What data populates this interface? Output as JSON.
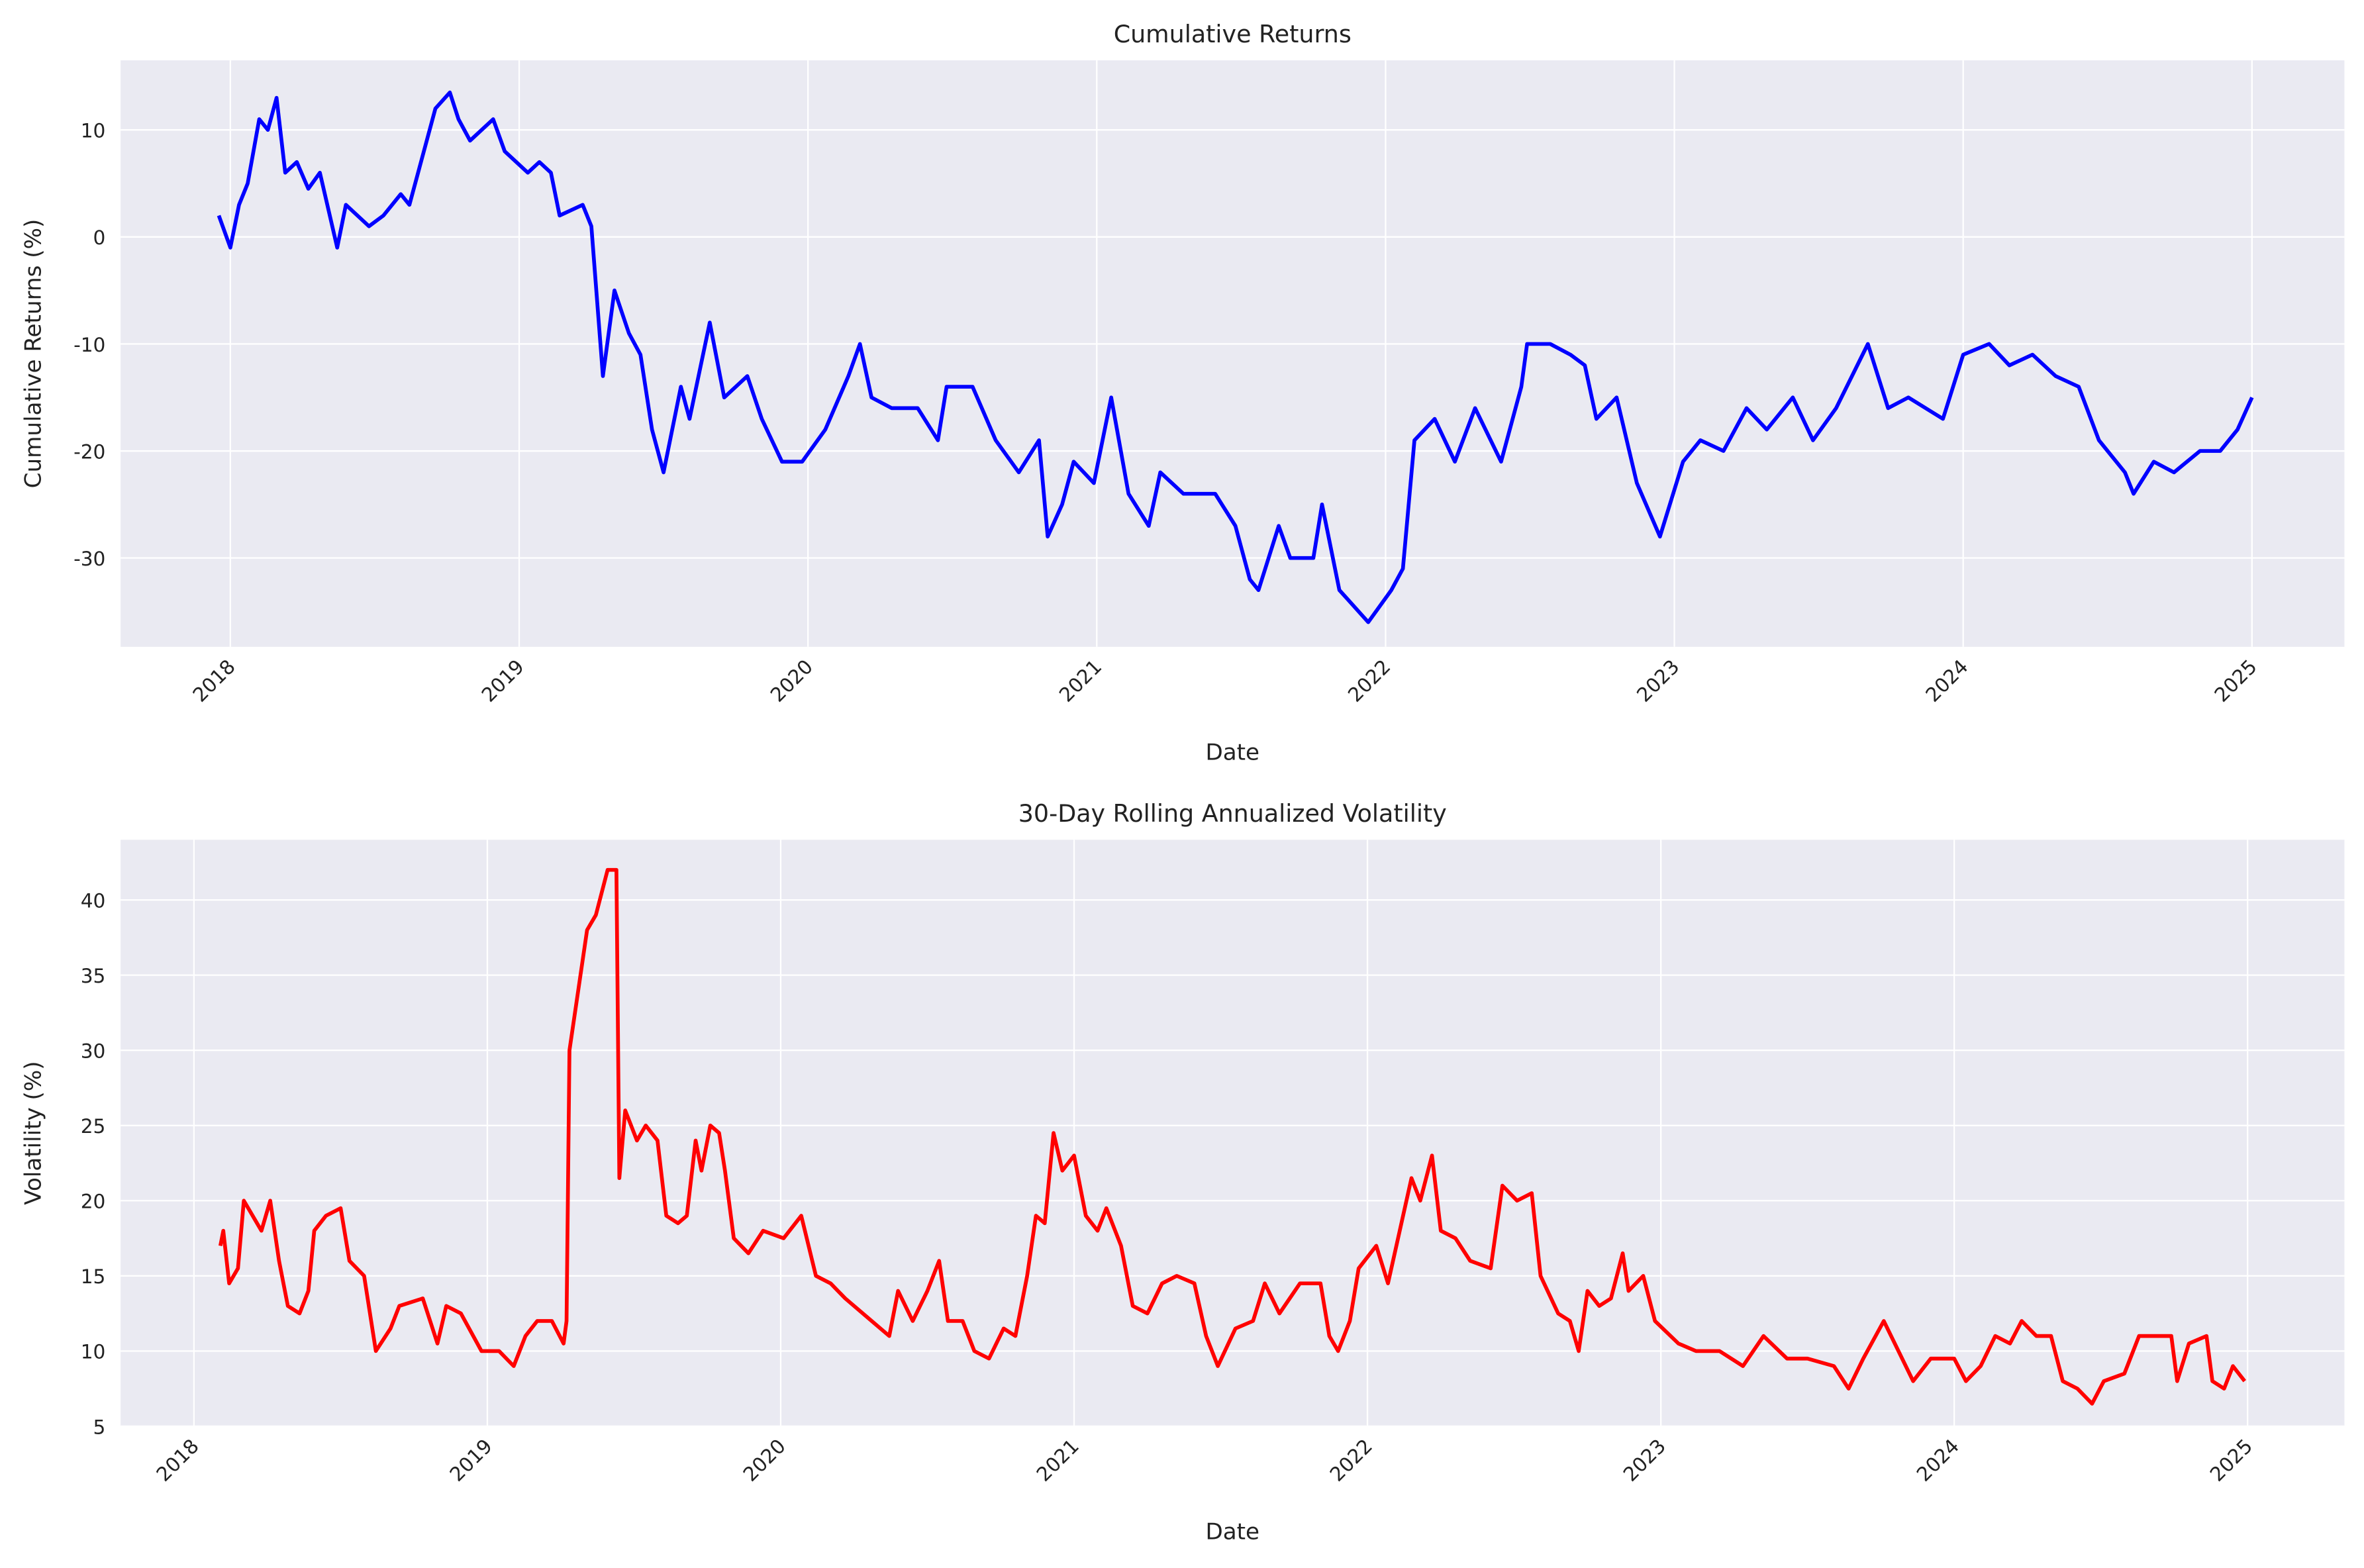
{
  "chart_data": [
    {
      "type": "line",
      "title": "Cumulative Returns",
      "x_label": "Date",
      "y_label": "Cumulative Returns (%)",
      "color": "#0000ff",
      "grid": true,
      "xlim": [
        2017.62,
        2025.32
      ],
      "xticks": [
        2018,
        2019,
        2020,
        2021,
        2022,
        2023,
        2024,
        2025
      ],
      "ylim": [
        -38.3,
        16.5
      ],
      "yticks": [
        -30,
        -20,
        -10,
        0,
        10
      ],
      "x": [
        2017.96,
        2018.0,
        2018.03,
        2018.06,
        2018.1,
        2018.13,
        2018.16,
        2018.19,
        2018.23,
        2018.27,
        2018.31,
        2018.37,
        2018.4,
        2018.48,
        2018.53,
        2018.59,
        2018.62,
        2018.66,
        2018.71,
        2018.76,
        2018.79,
        2018.83,
        2018.91,
        2018.95,
        2019.03,
        2019.07,
        2019.11,
        2019.14,
        2019.22,
        2019.25,
        2019.29,
        2019.33,
        2019.38,
        2019.42,
        2019.46,
        2019.5,
        2019.56,
        2019.59,
        2019.66,
        2019.71,
        2019.79,
        2019.84,
        2019.91,
        2019.98,
        2020.06,
        2020.14,
        2020.18,
        2020.22,
        2020.29,
        2020.38,
        2020.45,
        2020.48,
        2020.57,
        2020.65,
        2020.73,
        2020.8,
        2020.83,
        2020.88,
        2020.92,
        2020.99,
        2021.05,
        2021.11,
        2021.18,
        2021.22,
        2021.3,
        2021.41,
        2021.48,
        2021.53,
        2021.56,
        2021.63,
        2021.67,
        2021.75,
        2021.78,
        2021.84,
        2021.94,
        2022.02,
        2022.06,
        2022.1,
        2022.17,
        2022.24,
        2022.31,
        2022.4,
        2022.47,
        2022.49,
        2022.57,
        2022.64,
        2022.69,
        2022.73,
        2022.8,
        2022.87,
        2022.95,
        2023.03,
        2023.09,
        2023.17,
        2023.25,
        2023.32,
        2023.41,
        2023.48,
        2023.56,
        2023.67,
        2023.74,
        2023.81,
        2023.93,
        2024.0,
        2024.09,
        2024.16,
        2024.24,
        2024.32,
        2024.4,
        2024.47,
        2024.56,
        2024.59,
        2024.66,
        2024.73,
        2024.82,
        2024.89,
        2024.95,
        2025.0
      ],
      "values": [
        2,
        -1,
        3,
        5,
        11,
        10,
        13,
        6,
        7,
        4.5,
        6,
        -1,
        3,
        1,
        2,
        4,
        3,
        7,
        12,
        13.5,
        11,
        9,
        11,
        8,
        6,
        7,
        6,
        2,
        3,
        1,
        -13,
        -5,
        -9,
        -11,
        -18,
        -22,
        -14,
        -17,
        -8,
        -15,
        -13,
        -17,
        -21,
        -21,
        -18,
        -13,
        -10,
        -15,
        -16,
        -16,
        -19,
        -14,
        -14,
        -19,
        -22,
        -19,
        -28,
        -25,
        -21,
        -23,
        -15,
        -24,
        -27,
        -22,
        -24,
        -24,
        -27,
        -32,
        -33,
        -27,
        -30,
        -30,
        -25,
        -33,
        -36,
        -33,
        -31,
        -19,
        -17,
        -21,
        -16,
        -21,
        -14,
        -10,
        -10,
        -11,
        -12,
        -17,
        -15,
        -23,
        -28,
        -21,
        -19,
        -20,
        -16,
        -18,
        -15,
        -19,
        -16,
        -10,
        -16,
        -15,
        -17,
        -11,
        -10,
        -12,
        -11,
        -13,
        -14,
        -19,
        -22,
        -24,
        -21,
        -22,
        -20,
        -20,
        -18,
        -15
      ]
    },
    {
      "type": "line",
      "title": "30-Day Rolling Annualized Volatility",
      "x_label": "Date",
      "y_label": "Volatility (%)",
      "color": "#ff0000",
      "grid": true,
      "xlim": [
        2017.75,
        2025.33
      ],
      "xticks": [
        2018,
        2019,
        2020,
        2021,
        2022,
        2023,
        2024,
        2025
      ],
      "ylim": [
        5,
        44
      ],
      "yticks": [
        5,
        10,
        15,
        20,
        25,
        30,
        35,
        40
      ],
      "x": [
        2018.09,
        2018.1,
        2018.12,
        2018.15,
        2018.17,
        2018.2,
        2018.23,
        2018.26,
        2018.29,
        2018.32,
        2018.36,
        2018.39,
        2018.41,
        2018.45,
        2018.5,
        2018.53,
        2018.58,
        2018.62,
        2018.67,
        2018.7,
        2018.78,
        2018.83,
        2018.86,
        2018.91,
        2018.98,
        2019.04,
        2019.09,
        2019.13,
        2019.17,
        2019.22,
        2019.26,
        2019.27,
        2019.28,
        2019.34,
        2019.37,
        2019.41,
        2019.44,
        2019.45,
        2019.47,
        2019.51,
        2019.54,
        2019.58,
        2019.61,
        2019.65,
        2019.68,
        2019.71,
        2019.73,
        2019.76,
        2019.79,
        2019.81,
        2019.84,
        2019.89,
        2019.94,
        2020.01,
        2020.07,
        2020.12,
        2020.17,
        2020.22,
        2020.31,
        2020.37,
        2020.4,
        2020.45,
        2020.5,
        2020.54,
        2020.57,
        2020.62,
        2020.66,
        2020.71,
        2020.76,
        2020.8,
        2020.84,
        2020.87,
        2020.9,
        2020.93,
        2020.96,
        2021.0,
        2021.04,
        2021.08,
        2021.11,
        2021.16,
        2021.2,
        2021.25,
        2021.3,
        2021.35,
        2021.41,
        2021.45,
        2021.49,
        2021.55,
        2021.61,
        2021.65,
        2021.7,
        2021.77,
        2021.84,
        2021.87,
        2021.9,
        2021.94,
        2021.97,
        2022.03,
        2022.07,
        2022.11,
        2022.15,
        2022.18,
        2022.22,
        2022.25,
        2022.3,
        2022.35,
        2022.42,
        2022.46,
        2022.51,
        2022.56,
        2022.59,
        2022.65,
        2022.69,
        2022.72,
        2022.75,
        2022.79,
        2022.83,
        2022.87,
        2022.89,
        2022.94,
        2022.98,
        2023.06,
        2023.12,
        2023.2,
        2023.28,
        2023.35,
        2023.43,
        2023.5,
        2023.59,
        2023.64,
        2023.69,
        2023.76,
        2023.81,
        2023.86,
        2023.92,
        2024.0,
        2024.04,
        2024.09,
        2024.14,
        2024.19,
        2024.23,
        2024.28,
        2024.33,
        2024.37,
        2024.42,
        2024.47,
        2024.51,
        2024.58,
        2024.63,
        2024.69,
        2024.74,
        2024.76,
        2024.8,
        2024.86,
        2024.88,
        2024.92,
        2024.95,
        2024.99
      ],
      "values": [
        17,
        18,
        14.5,
        15.5,
        20,
        19,
        18,
        20,
        16,
        13,
        12.5,
        14,
        18,
        19,
        19.5,
        16,
        15,
        10,
        11.5,
        13,
        13.5,
        10.5,
        13,
        12.5,
        10,
        10,
        9,
        11,
        12,
        12,
        10.5,
        12,
        30,
        38,
        39,
        42,
        42,
        21.5,
        26,
        24,
        25,
        24,
        19,
        18.5,
        19,
        24,
        22,
        25,
        24.5,
        22,
        17.5,
        16.5,
        18,
        17.5,
        19,
        15,
        14.5,
        13.5,
        12,
        11,
        14,
        12,
        14,
        16,
        12,
        12,
        10,
        9.5,
        11.5,
        11,
        15,
        19,
        18.5,
        24.5,
        22,
        23,
        19,
        18,
        19.5,
        17,
        13,
        12.5,
        14.5,
        15,
        14.5,
        11,
        9,
        11.5,
        12,
        14.5,
        12.5,
        14.5,
        14.5,
        11,
        10,
        12,
        15.5,
        17,
        14.5,
        18,
        21.5,
        20,
        23,
        18,
        17.5,
        16,
        15.5,
        21,
        20,
        20.5,
        15,
        12.5,
        12,
        10,
        14,
        13,
        13.5,
        16.5,
        14,
        15,
        12,
        10.5,
        10,
        10,
        9,
        11,
        9.5,
        9.5,
        9,
        7.5,
        9.5,
        12,
        10,
        8,
        9.5,
        9.5,
        8,
        9,
        11,
        10.5,
        12,
        11,
        11,
        8,
        7.5,
        6.5,
        8,
        8.5,
        11,
        11,
        11,
        8,
        10.5,
        11,
        8,
        7.5,
        9,
        8
      ]
    }
  ]
}
